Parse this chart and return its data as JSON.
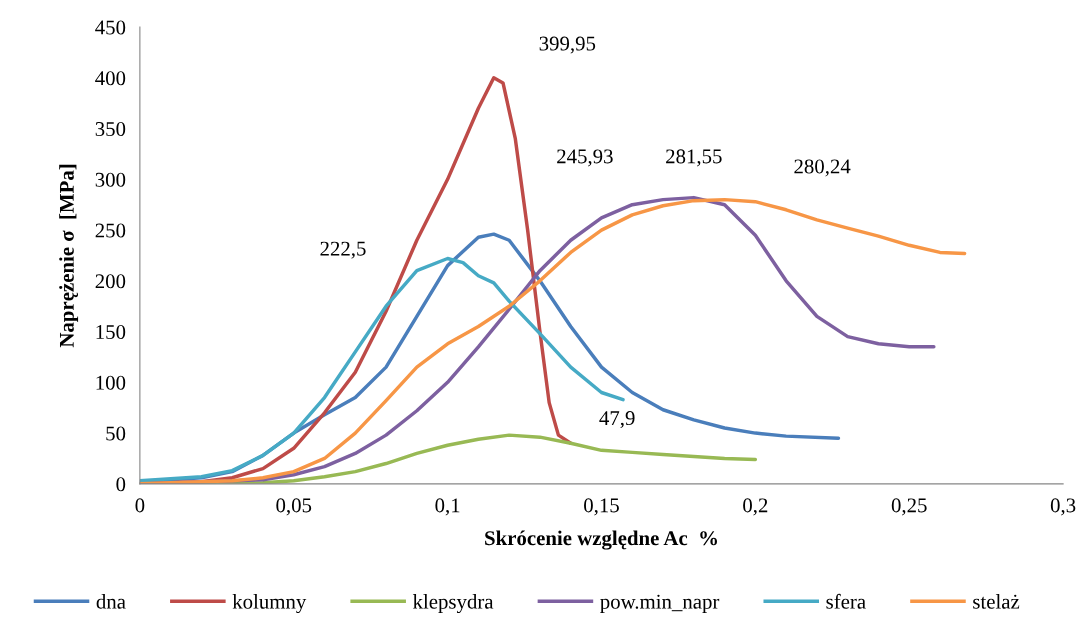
{
  "chart_data": {
    "type": "line",
    "xlabel": "Skrócenie względne Ac  %",
    "ylabel": "Naprężenie σ  [MPa]",
    "xlim": [
      0,
      0.3
    ],
    "xticks": [
      {
        "value": 0,
        "label": "0"
      },
      {
        "value": 0.05,
        "label": "0,05"
      },
      {
        "value": 0.1,
        "label": "0,1"
      },
      {
        "value": 0.15,
        "label": "0,15"
      },
      {
        "value": 0.2,
        "label": "0,2"
      },
      {
        "value": 0.25,
        "label": "0,25"
      },
      {
        "value": 0.3,
        "label": "0,3"
      }
    ],
    "ylim": [
      0,
      450
    ],
    "yticks": [
      0,
      50,
      100,
      150,
      200,
      250,
      300,
      350,
      400,
      450
    ],
    "grid": false,
    "legend": "bottom",
    "marker": "none",
    "line_style": "solid",
    "series": [
      {
        "name": "dna",
        "color": "#4a7ebb",
        "x": [
          0,
          0.02,
          0.03,
          0.04,
          0.05,
          0.06,
          0.07,
          0.08,
          0.09,
          0.1,
          0.11,
          0.115,
          0.12,
          0.13,
          0.14,
          0.15,
          0.16,
          0.17,
          0.18,
          0.19,
          0.2,
          0.21,
          0.227
        ],
        "values": [
          2,
          6,
          12,
          28,
          50,
          68,
          85,
          115,
          165,
          215,
          243,
          246,
          240,
          200,
          155,
          115,
          90,
          73,
          63,
          55,
          50,
          47,
          45
        ]
      },
      {
        "name": "kolumny",
        "color": "#be4b48",
        "x": [
          0,
          0.02,
          0.03,
          0.04,
          0.05,
          0.06,
          0.07,
          0.08,
          0.09,
          0.1,
          0.11,
          0.115,
          0.118,
          0.122,
          0.126,
          0.13,
          0.133,
          0.136,
          0.14
        ],
        "values": [
          0,
          2,
          6,
          15,
          35,
          70,
          110,
          170,
          240,
          300,
          370,
          400,
          395,
          340,
          250,
          150,
          80,
          48,
          40
        ]
      },
      {
        "name": "klepsydra",
        "color": "#98b954",
        "x": [
          0,
          0.04,
          0.05,
          0.06,
          0.07,
          0.08,
          0.09,
          0.1,
          0.11,
          0.12,
          0.13,
          0.14,
          0.15,
          0.16,
          0.17,
          0.18,
          0.19,
          0.2
        ],
        "values": [
          0,
          1,
          3,
          7,
          12,
          20,
          30,
          38,
          44,
          48,
          46,
          40,
          33,
          31,
          29,
          27,
          25,
          24
        ]
      },
      {
        "name": "pow.min_napr",
        "color": "#7d60a0",
        "x": [
          0,
          0.04,
          0.05,
          0.06,
          0.07,
          0.08,
          0.09,
          0.1,
          0.11,
          0.12,
          0.13,
          0.14,
          0.15,
          0.16,
          0.17,
          0.18,
          0.19,
          0.2,
          0.21,
          0.22,
          0.23,
          0.24,
          0.25,
          0.258
        ],
        "values": [
          0,
          4,
          9,
          17,
          30,
          48,
          72,
          100,
          135,
          172,
          210,
          240,
          262,
          275,
          280,
          282,
          275,
          245,
          200,
          165,
          145,
          138,
          135,
          135
        ]
      },
      {
        "name": "sfera",
        "color": "#46aac5",
        "x": [
          0,
          0.02,
          0.03,
          0.04,
          0.05,
          0.06,
          0.07,
          0.08,
          0.09,
          0.1,
          0.105,
          0.11,
          0.115,
          0.12,
          0.13,
          0.14,
          0.15,
          0.157
        ],
        "values": [
          3,
          7,
          13,
          28,
          50,
          85,
          130,
          175,
          210,
          222,
          218,
          205,
          198,
          180,
          148,
          115,
          90,
          83
        ]
      },
      {
        "name": "stelaż",
        "color": "#f79646",
        "x": [
          0,
          0.03,
          0.04,
          0.05,
          0.06,
          0.07,
          0.08,
          0.09,
          0.1,
          0.11,
          0.12,
          0.13,
          0.14,
          0.15,
          0.16,
          0.17,
          0.18,
          0.19,
          0.2,
          0.21,
          0.22,
          0.23,
          0.24,
          0.25,
          0.26,
          0.268
        ],
        "values": [
          0,
          3,
          6,
          12,
          25,
          50,
          82,
          115,
          138,
          155,
          175,
          200,
          228,
          250,
          265,
          274,
          279,
          280,
          278,
          270,
          260,
          252,
          244,
          235,
          228,
          227
        ]
      }
    ],
    "annotations": [
      "399,95",
      "245,93",
      "281,55",
      "280,24",
      "222,5",
      "47,9"
    ]
  }
}
